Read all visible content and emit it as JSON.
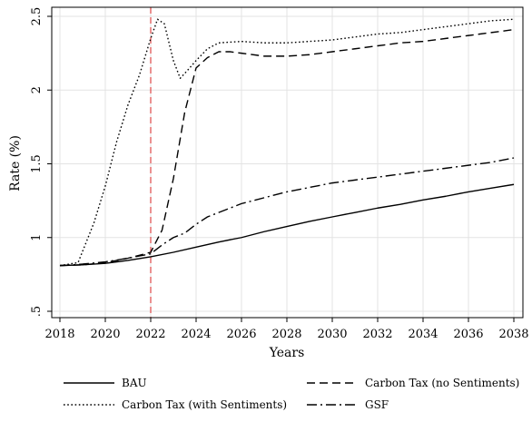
{
  "chart_data": {
    "type": "line",
    "xlabel": "Years",
    "ylabel": "Rate (%)",
    "xlim": [
      2018,
      2038
    ],
    "ylim": [
      0.5,
      2.5
    ],
    "xticks": [
      2018,
      2020,
      2022,
      2024,
      2026,
      2028,
      2030,
      2032,
      2034,
      2036,
      2038
    ],
    "xtick_labels": [
      "2018",
      "2020",
      "2022",
      "2024",
      "2026",
      "2028",
      "2030",
      "2032",
      "2034",
      "2036",
      "2038"
    ],
    "yticks": [
      0.5,
      1,
      1.5,
      2,
      2.5
    ],
    "ytick_labels": [
      ".5",
      "1",
      "1.5",
      "2",
      "2.5"
    ],
    "grid": true,
    "vline": {
      "x": 2022,
      "color": "#e05555",
      "style": "dashed"
    },
    "legend_position": "bottom",
    "series": [
      {
        "name": "BAU",
        "dash": "solid",
        "x": [
          2018,
          2019,
          2020,
          2021,
          2022,
          2023,
          2024,
          2025,
          2026,
          2027,
          2028,
          2029,
          2030,
          2031,
          2032,
          2033,
          2034,
          2035,
          2036,
          2037,
          2038
        ],
        "y": [
          0.81,
          0.815,
          0.825,
          0.845,
          0.87,
          0.9,
          0.935,
          0.97,
          1.0,
          1.04,
          1.075,
          1.11,
          1.14,
          1.17,
          1.2,
          1.225,
          1.255,
          1.28,
          1.31,
          1.335,
          1.36
        ]
      },
      {
        "name": "Carbon Tax (no Sentiments)",
        "dash": "dashed",
        "x": [
          2018,
          2019,
          2020,
          2021,
          2022,
          2022.5,
          2023,
          2023.5,
          2024,
          2024.5,
          2025,
          2025.5,
          2026,
          2027,
          2028,
          2029,
          2030,
          2031,
          2032,
          2033,
          2034,
          2035,
          2036,
          2037,
          2038
        ],
        "y": [
          0.81,
          0.815,
          0.83,
          0.86,
          0.9,
          1.05,
          1.4,
          1.85,
          2.15,
          2.22,
          2.26,
          2.26,
          2.25,
          2.23,
          2.23,
          2.24,
          2.26,
          2.28,
          2.3,
          2.32,
          2.33,
          2.35,
          2.37,
          2.39,
          2.41
        ]
      },
      {
        "name": "Carbon Tax (with Sentiments)",
        "dash": "dotted",
        "x": [
          2018,
          2018.8,
          2019.5,
          2020,
          2020.5,
          2021,
          2021.5,
          2022,
          2022.3,
          2022.6,
          2023,
          2023.3,
          2023.6,
          2024,
          2024.5,
          2025,
          2026,
          2027,
          2028,
          2029,
          2030,
          2031,
          2032,
          2033,
          2034,
          2035,
          2036,
          2037,
          2038
        ],
        "y": [
          0.81,
          0.83,
          1.1,
          1.35,
          1.65,
          1.9,
          2.1,
          2.35,
          2.48,
          2.45,
          2.2,
          2.08,
          2.13,
          2.2,
          2.28,
          2.32,
          2.33,
          2.32,
          2.32,
          2.33,
          2.34,
          2.36,
          2.38,
          2.39,
          2.41,
          2.43,
          2.45,
          2.47,
          2.48
        ]
      },
      {
        "name": "GSF",
        "dash": "dashdot",
        "x": [
          2018,
          2019,
          2020,
          2021,
          2022,
          2022.5,
          2023,
          2023.5,
          2024,
          2024.5,
          2025,
          2026,
          2027,
          2028,
          2029,
          2030,
          2031,
          2032,
          2033,
          2034,
          2035,
          2036,
          2037,
          2038
        ],
        "y": [
          0.81,
          0.82,
          0.835,
          0.86,
          0.89,
          0.95,
          1.0,
          1.03,
          1.09,
          1.14,
          1.17,
          1.23,
          1.27,
          1.31,
          1.34,
          1.37,
          1.39,
          1.41,
          1.43,
          1.45,
          1.47,
          1.49,
          1.51,
          1.54
        ]
      }
    ]
  }
}
